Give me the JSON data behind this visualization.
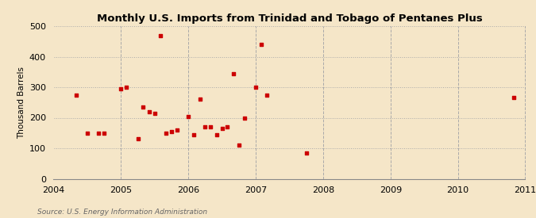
{
  "title": "Monthly U.S. Imports from Trinidad and Tobago of Pentanes Plus",
  "ylabel": "Thousand Barrels",
  "source": "Source: U.S. Energy Information Administration",
  "background_color": "#f5e6c8",
  "marker_color": "#cc0000",
  "xlim": [
    2004,
    2011
  ],
  "ylim": [
    0,
    500
  ],
  "yticks": [
    0,
    100,
    200,
    300,
    400,
    500
  ],
  "xticks": [
    2004,
    2005,
    2006,
    2007,
    2008,
    2009,
    2010,
    2011
  ],
  "x": [
    2004.33,
    2004.5,
    2004.67,
    2004.75,
    2005.0,
    2005.08,
    2005.25,
    2005.33,
    2005.42,
    2005.5,
    2005.58,
    2005.67,
    2005.75,
    2005.83,
    2006.0,
    2006.08,
    2006.17,
    2006.25,
    2006.33,
    2006.42,
    2006.5,
    2006.58,
    2006.67,
    2006.75,
    2006.83,
    2007.0,
    2007.08,
    2007.17,
    2007.75,
    2010.83
  ],
  "y": [
    275,
    150,
    150,
    150,
    295,
    300,
    130,
    235,
    220,
    215,
    470,
    150,
    155,
    160,
    205,
    145,
    260,
    170,
    170,
    145,
    165,
    170,
    345,
    110,
    200,
    300,
    440,
    275,
    85,
    265
  ]
}
